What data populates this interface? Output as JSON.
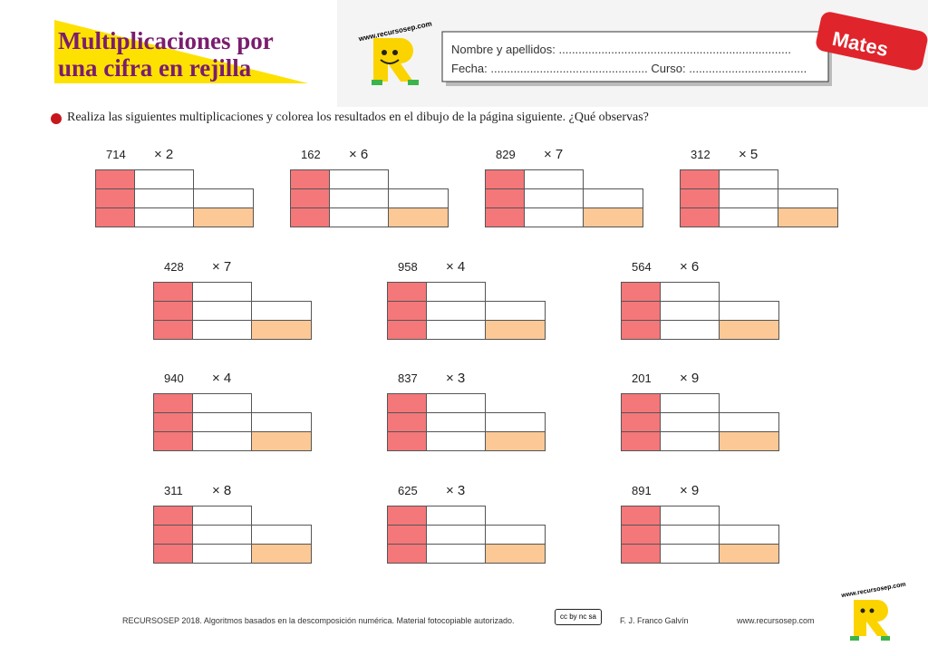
{
  "header": {
    "title_line1": "Multiplicaciones por",
    "title_line2": "una cifra en rejilla",
    "logo_text": "www.recursosep.com",
    "name_field": "Nombre y apellidos: .......................................................................",
    "date_field": "Fecha: ................................................ Curso: ....................................",
    "tab": "Mates"
  },
  "instruction": "Realiza las siguientes multiplicaciones y colorea los resultados en el dibujo de la página siguiente. ¿Qué observas?",
  "exercises": [
    {
      "number": "714",
      "multiplier": "× 2"
    },
    {
      "number": "162",
      "multiplier": "× 6"
    },
    {
      "number": "829",
      "multiplier": "× 7"
    },
    {
      "number": "312",
      "multiplier": "× 5"
    },
    {
      "number": "428",
      "multiplier": "× 7"
    },
    {
      "number": "958",
      "multiplier": "× 4"
    },
    {
      "number": "564",
      "multiplier": "× 6"
    },
    {
      "number": "940",
      "multiplier": "× 4"
    },
    {
      "number": "837",
      "multiplier": "× 3"
    },
    {
      "number": "201",
      "multiplier": "× 9"
    },
    {
      "number": "311",
      "multiplier": "× 8"
    },
    {
      "number": "625",
      "multiplier": "× 3"
    },
    {
      "number": "891",
      "multiplier": "× 9"
    }
  ],
  "footer": {
    "credit": "RECURSOSEP 2018. Algoritmos basados en la descomposición numérica. Material fotocopiable autorizado.",
    "license": "cc by nc sa",
    "author": "F. J. Franco Galvín",
    "website": "www.recursosep.com",
    "logo_text": "www.recursosep.com"
  }
}
